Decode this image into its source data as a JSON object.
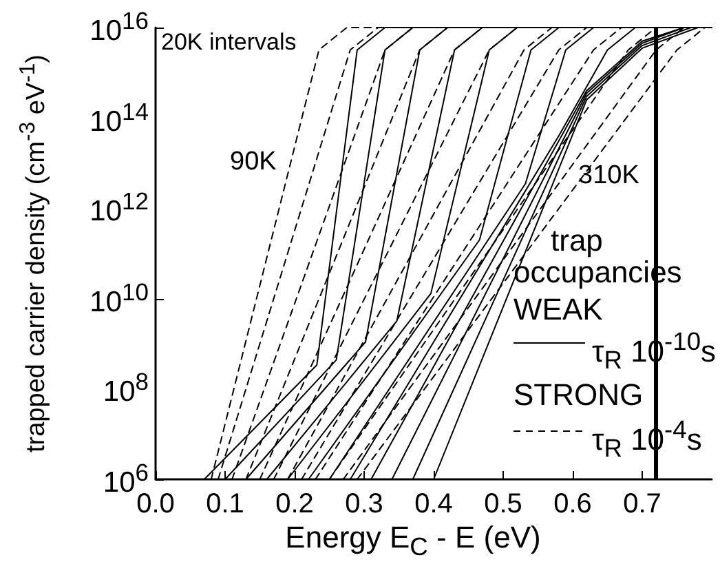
{
  "chart_data": {
    "type": "line",
    "xlabel": "Energy E$_{C}$ - E  (eV)",
    "ylabel": "trapped carrier density  (cm$^{-3}$ eV$^{-1}$)",
    "log": "y",
    "legend": "right",
    "xlim": [
      0,
      0.8
    ],
    "ylim": [
      1000000.0,
      1e+16
    ],
    "xticks": [
      {
        "value": 0,
        "label": "0.0"
      },
      {
        "value": 0.1,
        "label": "0.1"
      },
      {
        "value": 0.2,
        "label": "0.2"
      },
      {
        "value": 0.3,
        "label": "0.3"
      },
      {
        "value": 0.4,
        "label": "0.4"
      },
      {
        "value": 0.5,
        "label": "0.5"
      },
      {
        "value": 0.6,
        "label": "0.6"
      },
      {
        "value": 0.7,
        "label": "0.7"
      }
    ],
    "yticks": [
      {
        "value": 1000000.0,
        "label": "10$^{6}$"
      },
      {
        "value": 100000000.0,
        "label": "10$^{8}$"
      },
      {
        "value": 10000000000.0,
        "label": "10$^{10}$"
      },
      {
        "value": 1000000000000.0,
        "label": "10$^{12}$"
      },
      {
        "value": 100000000000000.0,
        "label": "10$^{14}$"
      },
      {
        "value": 1e+16,
        "label": "10$^{16}$"
      }
    ],
    "ref_lines": [
      {
        "axis": "x",
        "value": 0.72,
        "color": "#000000"
      }
    ],
    "annotations": [
      "20K intervals",
      "trap",
      "occupancies",
      "WEAK",
      "STRONG",
      "310K",
      "90K"
    ],
    "series": [
      {
        "name": "τ$_{R}$ 10$^{-10}$s",
        "color": "#000000",
        "line_style": "solid",
        "x": [
          0.07,
          0.232,
          0.29,
          0.33,
          0.8
        ],
        "values": [
          1000000.0,
          340000000.0,
          3200000000000000.0,
          1e+16,
          1e+16
        ]
      },
      {
        "color": "#000000",
        "line_style": "solid",
        "x": [
          0.1,
          0.26,
          0.33,
          0.37,
          0.8
        ],
        "values": [
          1000000.0,
          440000000.0,
          3200000000000000.0,
          1e+16,
          1e+16
        ]
      },
      {
        "color": "#000000",
        "line_style": "solid",
        "x": [
          0.13,
          0.302,
          0.38,
          0.42,
          0.8
        ],
        "values": [
          1000000.0,
          1100000000.0,
          3200000000000000.0,
          1e+16,
          1e+16
        ]
      },
      {
        "color": "#000000",
        "line_style": "solid",
        "x": [
          0.16,
          0.347,
          0.43,
          0.47,
          0.8
        ],
        "values": [
          1000000.0,
          3200000000.0,
          3200000000000000.0,
          1e+16,
          1e+16
        ]
      },
      {
        "color": "#000000",
        "line_style": "solid",
        "x": [
          0.19,
          0.396,
          0.48,
          0.52,
          0.8
        ],
        "values": [
          1000000.0,
          13000000000.0,
          3200000000000000.0,
          1e+16,
          1e+16
        ]
      },
      {
        "color": "#000000",
        "line_style": "solid",
        "x": [
          0.22,
          0.466,
          0.54,
          0.58,
          0.8
        ],
        "values": [
          1000000.0,
          200000000000.0,
          3200000000000000.0,
          1e+16,
          1e+16
        ]
      },
      {
        "color": "#000000",
        "line_style": "solid",
        "x": [
          0.25,
          0.532,
          0.59,
          0.63,
          0.8
        ],
        "values": [
          1000000.0,
          3500000000000.0,
          3200000000000000.0,
          1e+16,
          1e+16
        ]
      },
      {
        "color": "#000000",
        "line_style": "solid",
        "x": [
          0.28,
          0.58,
          0.65,
          0.69,
          0.8
        ],
        "values": [
          1000000.0,
          40000000000000.0,
          3200000000000000.0,
          1e+16,
          1e+16
        ]
      },
      {
        "color": "#000000",
        "line_style": "solid",
        "x": [
          0.31,
          0.62,
          0.7,
          0.76,
          0.8
        ],
        "values": [
          1000000.0,
          400000000000000.0,
          5000000000000000.0,
          1e+16,
          1e+16
        ]
      },
      {
        "color": "#000000",
        "line_style": "solid",
        "x": [
          0.34,
          0.62,
          0.7,
          0.76,
          0.8
        ],
        "values": [
          1000000.0,
          350000000000000.0,
          4500000000000000.0,
          1e+16,
          1e+16
        ]
      },
      {
        "color": "#000000",
        "line_style": "solid",
        "x": [
          0.37,
          0.62,
          0.7,
          0.77,
          0.8
        ],
        "values": [
          1000000.0,
          300000000000000.0,
          4000000000000000.0,
          1e+16,
          1e+16
        ]
      },
      {
        "color": "#000000",
        "line_style": "solid",
        "x": [
          0.4,
          0.62,
          0.7,
          0.78,
          0.8
        ],
        "values": [
          1000000.0,
          250000000000000.0,
          3500000000000000.0,
          1e+16,
          1e+16
        ]
      },
      {
        "name": "τ$_{R}$ 10$^{-4}$s",
        "color": "#000000",
        "line_style": "dashed",
        "x": [
          0.08,
          0.235,
          0.275,
          0.8
        ],
        "values": [
          1000000.0,
          3200000000000000.0,
          1e+16,
          1e+16
        ]
      },
      {
        "color": "#000000",
        "line_style": "dashed",
        "x": [
          0.09,
          0.28,
          0.32,
          0.8
        ],
        "values": [
          1000000.0,
          3200000000000000.0,
          1e+16,
          1e+16
        ]
      },
      {
        "color": "#000000",
        "line_style": "dashed",
        "x": [
          0.11,
          0.33,
          0.37,
          0.8
        ],
        "values": [
          1000000.0,
          3200000000000000.0,
          1e+16,
          1e+16
        ]
      },
      {
        "color": "#000000",
        "line_style": "dashed",
        "x": [
          0.13,
          0.38,
          0.42,
          0.8
        ],
        "values": [
          1000000.0,
          3200000000000000.0,
          1e+16,
          1e+16
        ]
      },
      {
        "color": "#000000",
        "line_style": "dashed",
        "x": [
          0.15,
          0.43,
          0.47,
          0.8
        ],
        "values": [
          1000000.0,
          3200000000000000.0,
          1e+16,
          1e+16
        ]
      },
      {
        "color": "#000000",
        "line_style": "dashed",
        "x": [
          0.17,
          0.48,
          0.52,
          0.8
        ],
        "values": [
          1000000.0,
          3200000000000000.0,
          1e+16,
          1e+16
        ]
      },
      {
        "color": "#000000",
        "line_style": "dashed",
        "x": [
          0.19,
          0.53,
          0.57,
          0.8
        ],
        "values": [
          1000000.0,
          3200000000000000.0,
          1e+16,
          1e+16
        ]
      },
      {
        "color": "#000000",
        "line_style": "dashed",
        "x": [
          0.21,
          0.58,
          0.62,
          0.8
        ],
        "values": [
          1000000.0,
          3200000000000000.0,
          1e+16,
          1e+16
        ]
      },
      {
        "color": "#000000",
        "line_style": "dashed",
        "x": [
          0.23,
          0.63,
          0.67,
          0.8
        ],
        "values": [
          1000000.0,
          3200000000000000.0,
          1e+16,
          1e+16
        ]
      },
      {
        "color": "#000000",
        "line_style": "dashed",
        "x": [
          0.25,
          0.68,
          0.72,
          0.8
        ],
        "values": [
          1000000.0,
          3200000000000000.0,
          1e+16,
          1e+16
        ]
      },
      {
        "color": "#000000",
        "line_style": "dashed",
        "x": [
          0.27,
          0.72,
          0.76,
          0.8
        ],
        "values": [
          1000000.0,
          3200000000000000.0,
          1e+16,
          1e+16
        ]
      },
      {
        "color": "#000000",
        "line_style": "dashed",
        "x": [
          0.29,
          0.75,
          0.79,
          0.8
        ],
        "values": [
          1000000.0,
          3200000000000000.0,
          1e+16,
          1e+16
        ]
      }
    ]
  }
}
